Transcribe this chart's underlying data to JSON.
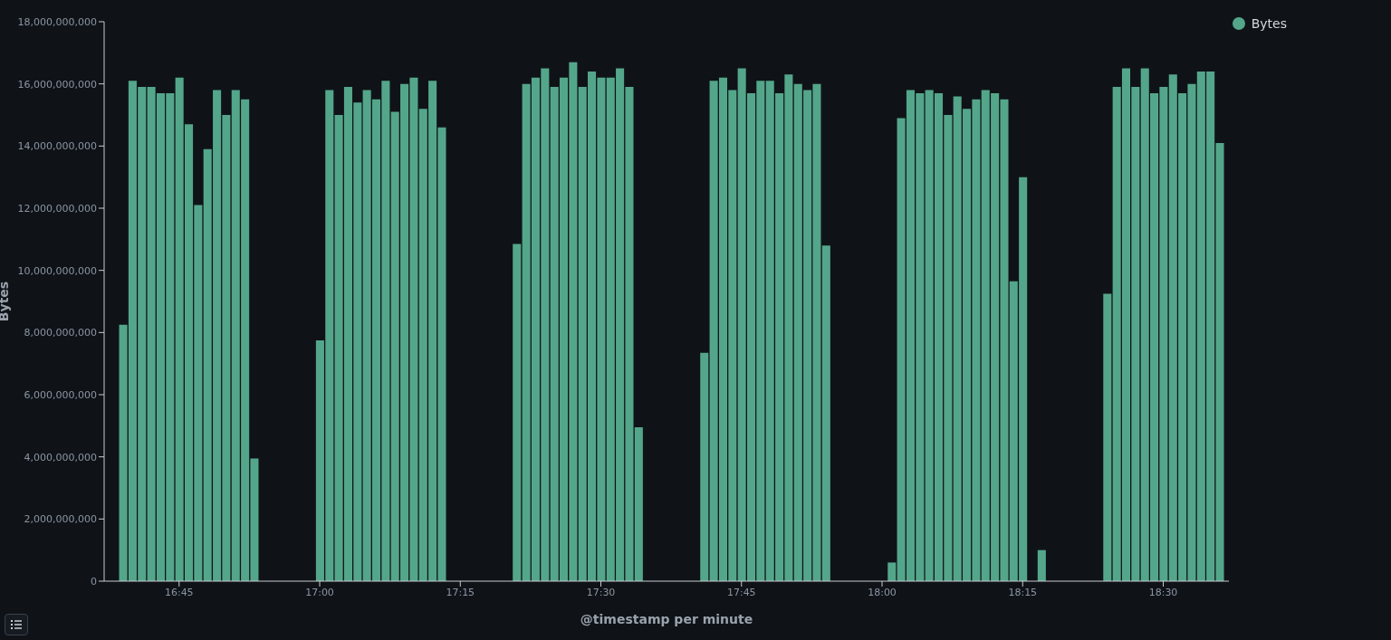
{
  "chart_data": {
    "type": "bar",
    "xlabel": "@timestamp per minute",
    "ylabel": "Bytes",
    "legend": "top right",
    "grid": false,
    "series": [
      {
        "name": "Bytes",
        "color": "#54a68a",
        "x": [
          16.65,
          16.6667,
          16.6833,
          16.7,
          16.7167,
          16.7333,
          16.75,
          16.7667,
          16.7833,
          16.8,
          16.8167,
          16.8333,
          16.85,
          16.8667,
          16.8833,
          17,
          17.0167,
          17.0333,
          17.05,
          17.0667,
          17.0833,
          17.1,
          17.1167,
          17.1333,
          17.15,
          17.1667,
          17.1833,
          17.2,
          17.2167,
          17.35,
          17.3667,
          17.3833,
          17.4,
          17.4167,
          17.4333,
          17.45,
          17.4667,
          17.4833,
          17.5,
          17.5167,
          17.5333,
          17.55,
          17.5667,
          17.6833,
          17.7,
          17.7167,
          17.7333,
          17.75,
          17.7667,
          17.7833,
          17.8,
          17.8167,
          17.8333,
          17.85,
          17.8667,
          17.8833,
          17.9,
          18.0167,
          18.0333,
          18.05,
          18.0667,
          18.0833,
          18.1,
          18.1167,
          18.1333,
          18.15,
          18.1667,
          18.1833,
          18.2,
          18.2167,
          18.2333,
          18.25,
          18.2833,
          18.4,
          18.4167,
          18.4333,
          18.45,
          18.4667,
          18.4833,
          18.5,
          18.5167,
          18.5333,
          18.55,
          18.5667,
          18.5833,
          18.6
        ],
        "values": [
          8250000000,
          16100000000,
          15900000000,
          15900000000,
          15700000000,
          15700000000,
          16200000000,
          14700000000,
          12100000000,
          13900000000,
          15800000000,
          15000000000,
          15800000000,
          15500000000,
          3950000000,
          7750000000,
          15800000000,
          15000000000,
          15900000000,
          15400000000,
          15800000000,
          15500000000,
          16100000000,
          15100000000,
          16000000000,
          16200000000,
          15200000000,
          16100000000,
          14600000000,
          10850000000,
          16000000000,
          16200000000,
          16500000000,
          15900000000,
          16200000000,
          16700000000,
          15900000000,
          16400000000,
          16200000000,
          16200000000,
          16500000000,
          15900000000,
          4950000000,
          7350000000,
          16100000000,
          16200000000,
          15800000000,
          16500000000,
          15700000000,
          16100000000,
          16100000000,
          15700000000,
          16300000000,
          16000000000,
          15800000000,
          16000000000,
          10800000000,
          600000000,
          14900000000,
          15800000000,
          15700000000,
          15800000000,
          15700000000,
          15000000000,
          15600000000,
          15200000000,
          15500000000,
          15800000000,
          15700000000,
          15500000000,
          9650000000,
          13000000000,
          1000000000,
          9250000000,
          15900000000,
          16500000000,
          15900000000,
          16500000000,
          15700000000,
          15900000000,
          16300000000,
          15700000000,
          16000000000,
          16400000000,
          16400000000,
          14100000000
        ]
      }
    ],
    "xlim": [
      16.6167,
      18.6167
    ],
    "xticks": [
      {
        "value": 16.75,
        "label": "16:45"
      },
      {
        "value": 17,
        "label": "17:00"
      },
      {
        "value": 17.25,
        "label": "17:15"
      },
      {
        "value": 17.5,
        "label": "17:30"
      },
      {
        "value": 17.75,
        "label": "17:45"
      },
      {
        "value": 18,
        "label": "18:00"
      },
      {
        "value": 18.25,
        "label": "18:15"
      },
      {
        "value": 18.5,
        "label": "18:30"
      }
    ],
    "ylim": [
      0,
      18000000000
    ],
    "yticks": [
      0,
      {
        "value": 2000000000,
        "label": "2,000,000,000"
      },
      {
        "value": 4000000000,
        "label": "4,000,000,000"
      },
      {
        "value": 6000000000,
        "label": "6,000,000,000"
      },
      {
        "value": 8000000000,
        "label": "8,000,000,000"
      },
      {
        "value": 10000000000,
        "label": "10,000,000,000"
      },
      {
        "value": 12000000000,
        "label": "12,000,000,000"
      },
      {
        "value": 14000000000,
        "label": "14,000,000,000"
      },
      {
        "value": 16000000000,
        "label": "16,000,000,000"
      },
      {
        "value": 18000000000,
        "label": "18,000,000,000"
      }
    ]
  }
}
